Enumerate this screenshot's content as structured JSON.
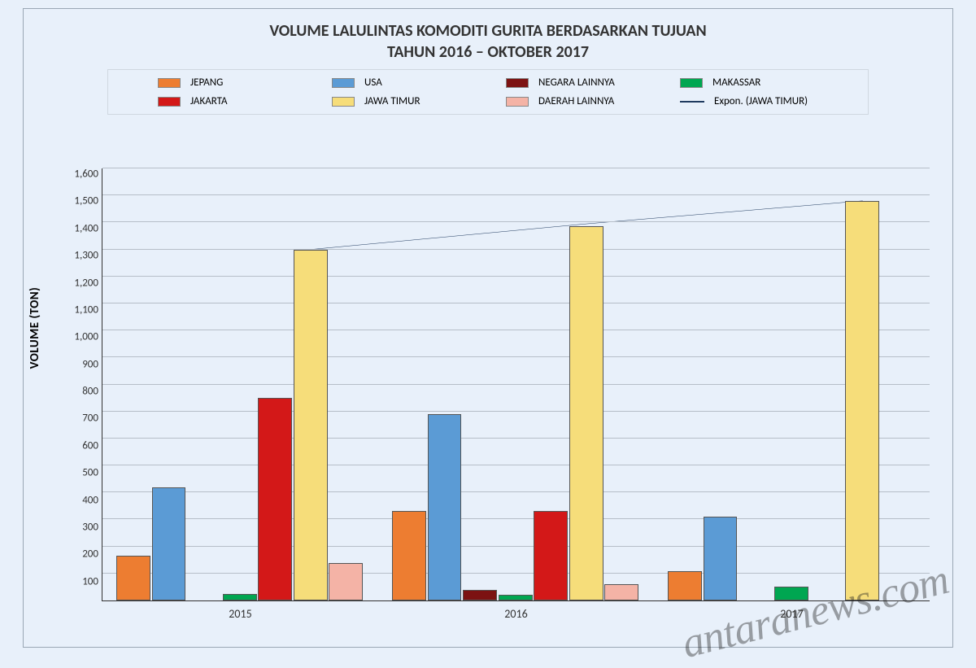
{
  "chart": {
    "type": "bar-grouped-with-line",
    "title_line1": "VOLUME LALULINTAS KOMODITI GURITA BERDASARKAN TUJUAN",
    "title_line2": "TAHUN 2016 – OKTOBER 2017",
    "title_fontsize": 20,
    "title_color": "#333333",
    "background_color": "#e8f0fa",
    "border_color": "#9aa7b4",
    "y_axis": {
      "label": "VOLUME (TON)",
      "min": 0,
      "max": 1600,
      "tick_step": 100,
      "ticks": [
        "1,600",
        "1,500",
        "1,400",
        "1,300",
        "1,200",
        "1,100",
        "1,000",
        "900",
        "800",
        "700",
        "600",
        "500",
        "400",
        "300",
        "200",
        "100"
      ],
      "label_fontsize": 15,
      "tick_fontsize": 13,
      "grid_color": "#b6bec8"
    },
    "x_axis": {
      "categories": [
        "2015",
        "2016",
        "2017"
      ],
      "tick_fontsize": 14
    },
    "legend": {
      "border_color": "#cfd7e0",
      "item_fontsize": 13,
      "items": [
        {
          "label": "JEPANG",
          "color": "#ed7d31",
          "type": "box"
        },
        {
          "label": "USA",
          "color": "#5b9bd5",
          "type": "box"
        },
        {
          "label": "NEGARA LAINNYA",
          "color": "#7c1212",
          "type": "box"
        },
        {
          "label": "MAKASSAR",
          "color": "#00a651",
          "type": "box"
        },
        {
          "label": "JAKARTA",
          "color": "#d31818",
          "type": "box"
        },
        {
          "label": "JAWA TIMUR",
          "color": "#f6dd7a",
          "type": "box"
        },
        {
          "label": "DAERAH LAINNYA",
          "color": "#f4b3a6",
          "type": "box"
        },
        {
          "label": "Expon. (JAWA TIMUR)",
          "color": "#1f3a5f",
          "type": "line"
        }
      ]
    },
    "series": [
      {
        "name": "JEPANG",
        "color": "#ed7d31",
        "values": [
          165,
          330,
          110
        ]
      },
      {
        "name": "USA",
        "color": "#5b9bd5",
        "values": [
          420,
          690,
          310
        ]
      },
      {
        "name": "NEGARA LAINNYA",
        "color": "#7c1212",
        "values": [
          0,
          40,
          0
        ]
      },
      {
        "name": "MAKASSAR",
        "color": "#00a651",
        "values": [
          25,
          20,
          50
        ]
      },
      {
        "name": "JAKARTA",
        "color": "#d31818",
        "values": [
          750,
          330,
          0
        ]
      },
      {
        "name": "JAWA TIMUR",
        "color": "#f6dd7a",
        "values": [
          1300,
          1385,
          1480
        ]
      },
      {
        "name": "DAERAH LAINNYA",
        "color": "#f4b3a6",
        "values": [
          140,
          60,
          0
        ]
      }
    ],
    "trendline": {
      "name": "Expon. (JAWA TIMUR)",
      "color": "#1f3a5f",
      "width": 2,
      "points": [
        1300,
        1395,
        1480
      ]
    },
    "bar_layout": {
      "group_span_pct": 30,
      "group_gap_pct": 3,
      "bar_border_color": "#555555"
    }
  },
  "watermark": {
    "text": "antaranews.com",
    "color": "rgba(30,30,30,0.4)",
    "fontsize": 52,
    "rotation_deg": -14
  }
}
